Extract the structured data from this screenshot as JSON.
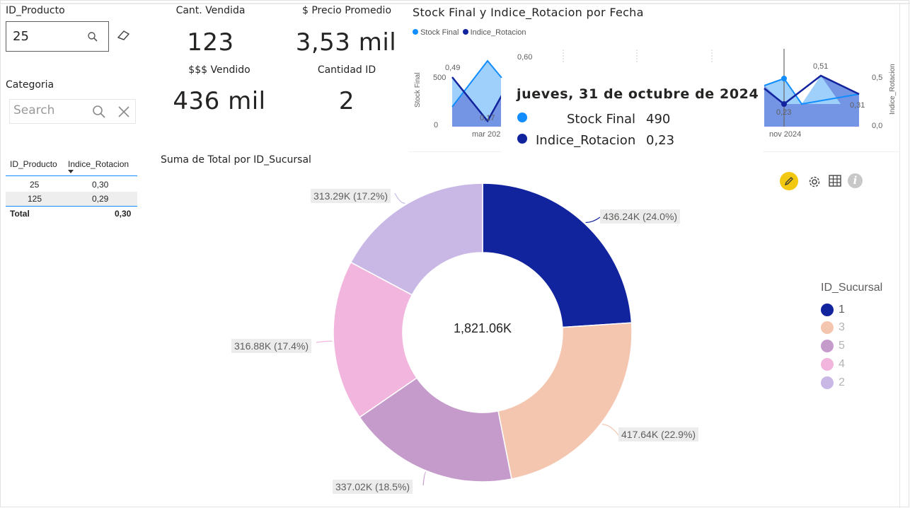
{
  "slicer_producto": {
    "title": "ID_Producto",
    "value": "25"
  },
  "slicer_categoria": {
    "title": "Categoria",
    "placeholder": "Search"
  },
  "cards": {
    "cant_vendida": {
      "label": "Cant. Vendida",
      "value": "123"
    },
    "precio_promedio": {
      "label": "$ Precio Promedio",
      "value": "3,53 mil"
    },
    "vendido": {
      "label": "$$$ Vendido",
      "value": "436 mil"
    },
    "cantidad_id": {
      "label": "Cantidad ID",
      "value": "2"
    }
  },
  "table": {
    "headers": [
      "ID_Producto",
      "Indice_Rotacion"
    ],
    "rows": [
      [
        "25",
        "0,30"
      ],
      [
        "125",
        "0,29"
      ]
    ],
    "total_label": "Total",
    "total_value": "0,30"
  },
  "line_chart": {
    "title": "Stock Final y Indice_Rotacion por Fecha",
    "legend": [
      "Stock Final",
      "Indice_Rotacion"
    ],
    "left_axis_label": "Stock Final",
    "right_axis_label": "Indice_Rotacion",
    "left_ticks": [
      "500",
      "0"
    ],
    "right_ticks": [
      "0,5",
      "0,0"
    ],
    "x_ticks": [
      "mar 202",
      "nov 2024"
    ],
    "data_labels": [
      "0,49",
      "0,17",
      "0,60",
      "0,51",
      "0,23",
      "0,31"
    ],
    "colors": {
      "stock": "#118dff",
      "rotacion": "#12239e"
    }
  },
  "tooltip": {
    "date": "jueves, 31 de octubre de 2024",
    "rows": [
      {
        "label": "Stock Final",
        "value": "490",
        "color": "#118dff"
      },
      {
        "label": "Indice_Rotacion",
        "value": "0,23",
        "color": "#12239e"
      }
    ]
  },
  "toolbar_icons": [
    "pencil-icon",
    "gear-icon",
    "table-icon",
    "info-icon"
  ],
  "donut": {
    "title": "Suma de Total por ID_Sucursal",
    "center_label": "1,821.06K",
    "legend_title": "ID_Sucursal"
  },
  "chart_data": {
    "type": "pie",
    "title": "Suma de Total por ID_Sucursal",
    "total": 1821.06,
    "slices": [
      {
        "name": "1",
        "value": 436.24,
        "percent": 24.0,
        "label": "436.24K (24.0%)",
        "color": "#12239e"
      },
      {
        "name": "3",
        "value": 417.64,
        "percent": 22.9,
        "label": "417.64K (22.9%)",
        "color": "#f4c6b0"
      },
      {
        "name": "5",
        "value": 337.02,
        "percent": 18.5,
        "label": "337.02K (18.5%)",
        "color": "#c59bcb"
      },
      {
        "name": "4",
        "value": 316.88,
        "percent": 17.4,
        "label": "316.88K (17.4%)",
        "color": "#f2b5dd"
      },
      {
        "name": "2",
        "value": 313.29,
        "percent": 17.2,
        "label": "313.29K (17.2%)",
        "color": "#c9b8e6"
      }
    ],
    "legend_order": [
      "1",
      "3",
      "5",
      "4",
      "2"
    ],
    "legend_placement": "right"
  }
}
